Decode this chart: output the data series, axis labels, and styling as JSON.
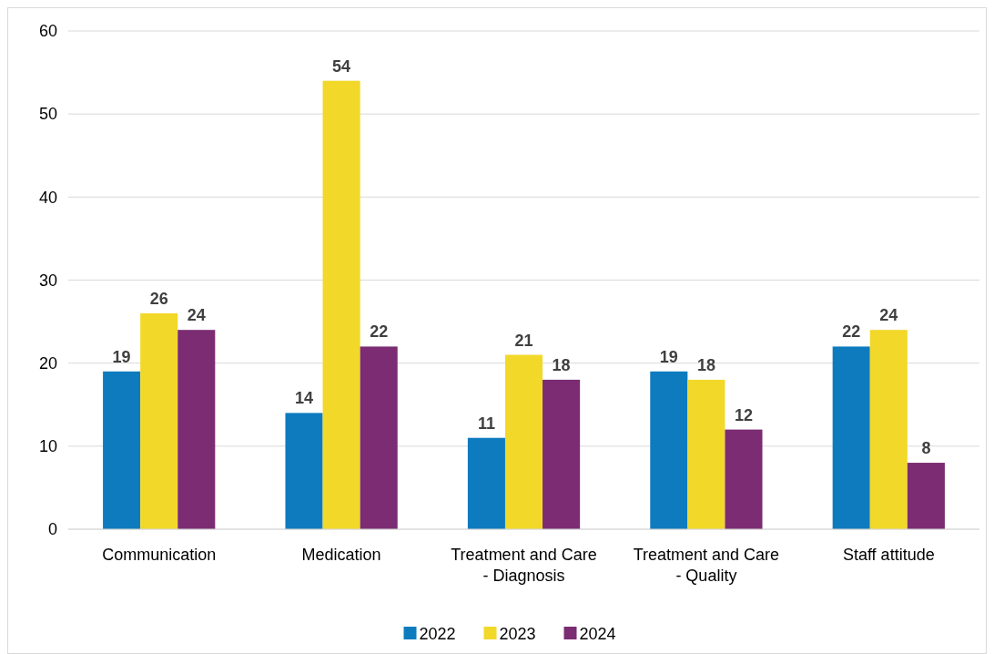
{
  "chart_data": {
    "type": "bar",
    "categories": [
      "Communication",
      "Medication",
      "Treatment and Care - Diagnosis",
      "Treatment and Care - Quality",
      "Staff attitude"
    ],
    "series": [
      {
        "name": "2022",
        "color": "#0e7bbf",
        "values": [
          19,
          14,
          11,
          19,
          22
        ]
      },
      {
        "name": "2023",
        "color": "#f2d829",
        "values": [
          26,
          54,
          21,
          18,
          24
        ]
      },
      {
        "name": "2024",
        "color": "#7b2c72",
        "values": [
          24,
          22,
          18,
          12,
          8
        ]
      }
    ],
    "ylim": [
      0,
      60
    ],
    "yticks": [
      0,
      10,
      20,
      30,
      40,
      50,
      60
    ],
    "grid": "y",
    "legend": "bottom",
    "data_labels": true
  }
}
